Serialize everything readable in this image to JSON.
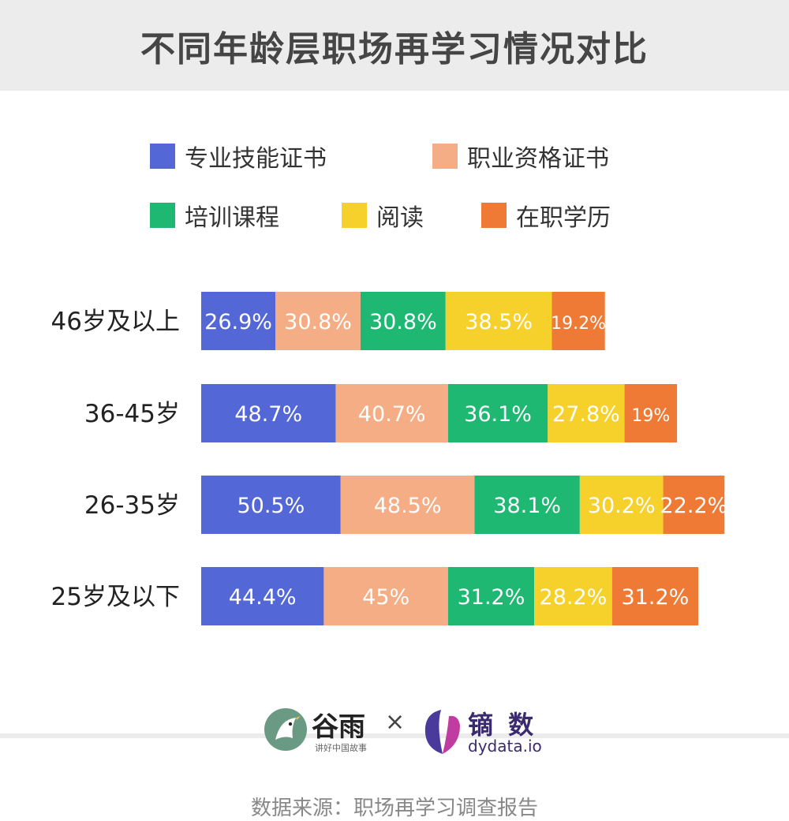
{
  "title": "不同年龄层职场再学习情况对比",
  "chart_data": {
    "type": "bar",
    "orientation": "horizontal",
    "stacked": true,
    "categories": [
      "46岁及以上",
      "36-45岁",
      "26-35岁",
      "25岁及以下"
    ],
    "series": [
      {
        "name": "专业技能证书",
        "color": "#5367d7",
        "values": [
          26.9,
          48.7,
          50.5,
          44.4
        ],
        "labels": [
          "26.9%",
          "48.7%",
          "50.5%",
          "44.4%"
        ]
      },
      {
        "name": "职业资格证书",
        "color": "#f4ad85",
        "values": [
          30.8,
          40.7,
          48.5,
          45
        ],
        "labels": [
          "30.8%",
          "40.7%",
          "48.5%",
          "45%"
        ]
      },
      {
        "name": "培训课程",
        "color": "#1fb873",
        "values": [
          30.8,
          36.1,
          38.1,
          31.2
        ],
        "labels": [
          "30.8%",
          "36.1%",
          "38.1%",
          "31.2%"
        ]
      },
      {
        "name": "阅读",
        "color": "#f6d12c",
        "values": [
          38.5,
          27.8,
          30.2,
          28.2
        ],
        "labels": [
          "38.5%",
          "27.8%",
          "30.2%",
          "28.2%"
        ]
      },
      {
        "name": "在职学历",
        "color": "#ef7a35",
        "values": [
          19.2,
          19,
          22.2,
          31.2
        ],
        "labels": [
          "19.2%",
          "19%",
          "22.2%",
          "31.2%"
        ]
      }
    ],
    "legend_position": "top",
    "grid": false
  },
  "logos": {
    "guyu": {
      "name": "谷雨",
      "tagline": "讲好中国故事"
    },
    "separator": "×",
    "dydata": {
      "name": "镝 数",
      "url": "dydata.io"
    }
  },
  "source": "数据来源：职场再学习调查报告"
}
